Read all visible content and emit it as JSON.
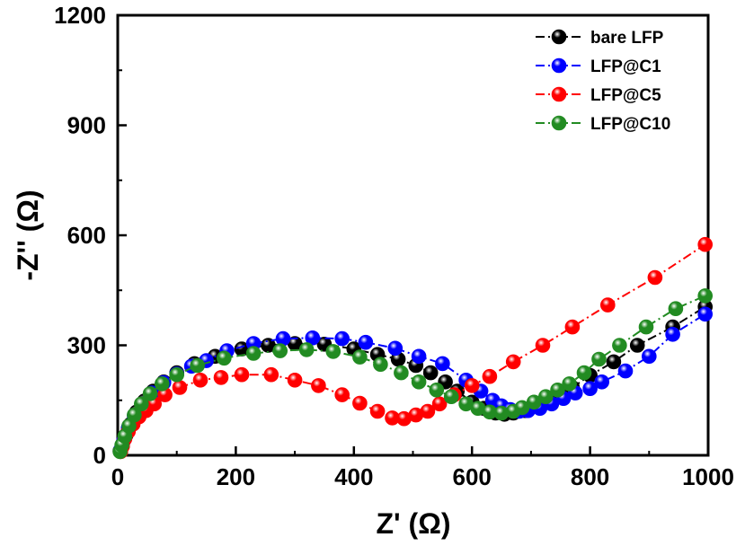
{
  "chart_data": {
    "type": "scatter",
    "xlabel": "Z' (Ω)",
    "ylabel": "-Z'' (Ω)",
    "xlim": [
      0,
      1000
    ],
    "ylim": [
      0,
      1200
    ],
    "xticks": [
      "0",
      "200",
      "400",
      "600",
      "800",
      "1000"
    ],
    "yticks": [
      "0",
      "300",
      "600",
      "900",
      "1200"
    ],
    "grid": false,
    "legend_position": "top-right",
    "series": [
      {
        "name": "bare LFP",
        "color": "#000000",
        "line_style": "dash-dot",
        "points": [
          [
            4,
            12
          ],
          [
            8,
            30
          ],
          [
            14,
            55
          ],
          [
            22,
            85
          ],
          [
            32,
            118
          ],
          [
            45,
            148
          ],
          [
            60,
            175
          ],
          [
            78,
            200
          ],
          [
            100,
            225
          ],
          [
            130,
            250
          ],
          [
            165,
            270
          ],
          [
            210,
            290
          ],
          [
            255,
            300
          ],
          [
            300,
            305
          ],
          [
            350,
            303
          ],
          [
            400,
            290
          ],
          [
            440,
            275
          ],
          [
            475,
            262
          ],
          [
            505,
            245
          ],
          [
            530,
            225
          ],
          [
            555,
            200
          ],
          [
            575,
            175
          ],
          [
            600,
            145
          ],
          [
            620,
            128
          ],
          [
            640,
            115
          ],
          [
            655,
            112
          ],
          [
            670,
            115
          ],
          [
            690,
            122
          ],
          [
            710,
            135
          ],
          [
            730,
            150
          ],
          [
            750,
            165
          ],
          [
            770,
            185
          ],
          [
            800,
            218
          ],
          [
            840,
            255
          ],
          [
            880,
            300
          ],
          [
            940,
            350
          ],
          [
            995,
            405
          ]
        ]
      },
      {
        "name": "LFP@C1",
        "color": "#0000ff",
        "line_style": "dash-dot",
        "points": [
          [
            5,
            15
          ],
          [
            10,
            40
          ],
          [
            18,
            75
          ],
          [
            28,
            108
          ],
          [
            42,
            140
          ],
          [
            58,
            170
          ],
          [
            78,
            198
          ],
          [
            100,
            222
          ],
          [
            125,
            243
          ],
          [
            150,
            258
          ],
          [
            185,
            285
          ],
          [
            230,
            305
          ],
          [
            280,
            318
          ],
          [
            330,
            320
          ],
          [
            380,
            318
          ],
          [
            420,
            308
          ],
          [
            470,
            292
          ],
          [
            510,
            270
          ],
          [
            550,
            250
          ],
          [
            590,
            205
          ],
          [
            615,
            175
          ],
          [
            635,
            150
          ],
          [
            650,
            135
          ],
          [
            665,
            125
          ],
          [
            680,
            120
          ],
          [
            695,
            122
          ],
          [
            715,
            128
          ],
          [
            735,
            140
          ],
          [
            755,
            155
          ],
          [
            775,
            170
          ],
          [
            800,
            182
          ],
          [
            820,
            200
          ],
          [
            860,
            230
          ],
          [
            900,
            270
          ],
          [
            940,
            330
          ],
          [
            995,
            385
          ]
        ]
      },
      {
        "name": "LFP@C5",
        "color": "#ff0000",
        "line_style": "dash-dot",
        "points": [
          [
            5,
            10
          ],
          [
            8,
            25
          ],
          [
            12,
            45
          ],
          [
            18,
            65
          ],
          [
            26,
            85
          ],
          [
            36,
            105
          ],
          [
            48,
            122
          ],
          [
            62,
            140
          ],
          [
            80,
            165
          ],
          [
            105,
            185
          ],
          [
            140,
            205
          ],
          [
            175,
            212
          ],
          [
            210,
            220
          ],
          [
            260,
            220
          ],
          [
            300,
            205
          ],
          [
            340,
            190
          ],
          [
            380,
            165
          ],
          [
            410,
            142
          ],
          [
            440,
            120
          ],
          [
            465,
            102
          ],
          [
            485,
            100
          ],
          [
            505,
            110
          ],
          [
            525,
            120
          ],
          [
            545,
            140
          ],
          [
            570,
            165
          ],
          [
            600,
            190
          ],
          [
            630,
            215
          ],
          [
            670,
            255
          ],
          [
            720,
            300
          ],
          [
            770,
            350
          ],
          [
            830,
            410
          ],
          [
            910,
            485
          ],
          [
            995,
            575
          ]
        ]
      },
      {
        "name": "LFP@C10",
        "color": "#228b22",
        "line_style": "dash-dot",
        "points": [
          [
            4,
            10
          ],
          [
            7,
            28
          ],
          [
            12,
            52
          ],
          [
            19,
            80
          ],
          [
            28,
            110
          ],
          [
            40,
            140
          ],
          [
            55,
            168
          ],
          [
            75,
            195
          ],
          [
            100,
            220
          ],
          [
            135,
            245
          ],
          [
            180,
            265
          ],
          [
            230,
            278
          ],
          [
            275,
            285
          ],
          [
            320,
            288
          ],
          [
            365,
            283
          ],
          [
            410,
            268
          ],
          [
            445,
            248
          ],
          [
            480,
            225
          ],
          [
            510,
            200
          ],
          [
            540,
            178
          ],
          [
            565,
            160
          ],
          [
            590,
            140
          ],
          [
            610,
            128
          ],
          [
            630,
            118
          ],
          [
            650,
            115
          ],
          [
            670,
            120
          ],
          [
            685,
            130
          ],
          [
            705,
            145
          ],
          [
            725,
            160
          ],
          [
            745,
            178
          ],
          [
            765,
            195
          ],
          [
            790,
            225
          ],
          [
            815,
            262
          ],
          [
            850,
            300
          ],
          [
            895,
            350
          ],
          [
            945,
            400
          ],
          [
            995,
            435
          ]
        ]
      }
    ]
  }
}
